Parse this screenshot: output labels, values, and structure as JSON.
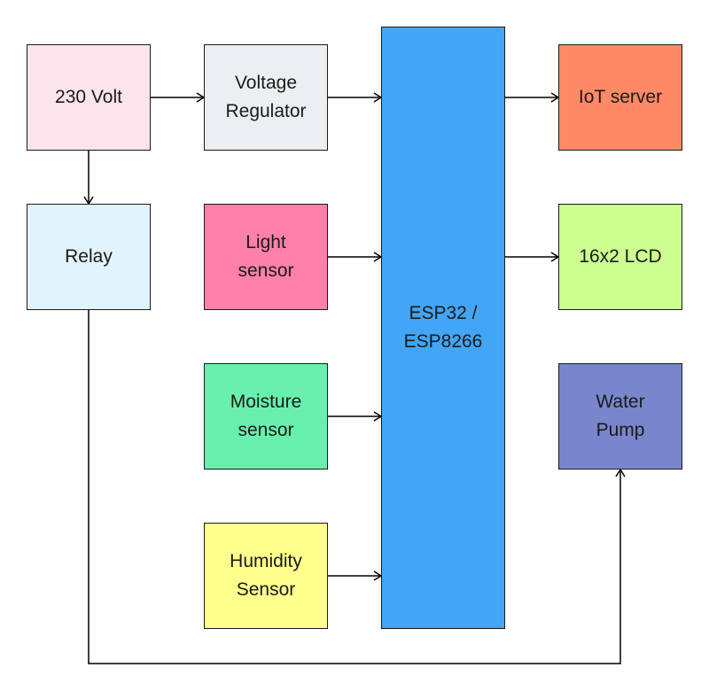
{
  "blocks": {
    "power_230v": {
      "label": "230 Volt",
      "color": "#fce4ec"
    },
    "relay": {
      "label": "Relay",
      "color": "#e1f3fd"
    },
    "regulator": {
      "label": "Voltage\nRegulator",
      "color": "#eceff1"
    },
    "light": {
      "label": "Light\nsensor",
      "color": "#ff80ab"
    },
    "moisture": {
      "label": "Moisture\nsensor",
      "color": "#69f0ae"
    },
    "humidity": {
      "label": "Humidity\nSensor",
      "color": "#ffff8d"
    },
    "esp": {
      "label": "ESP32 /\nESP8266",
      "color": "#42a5f5"
    },
    "iot": {
      "label": "IoT server",
      "color": "#ff8a65"
    },
    "lcd": {
      "label": "16x2 LCD",
      "color": "#ccff90"
    },
    "pump": {
      "label": "Water\nPump",
      "color": "#7986cb"
    }
  },
  "line_color": "#000000"
}
